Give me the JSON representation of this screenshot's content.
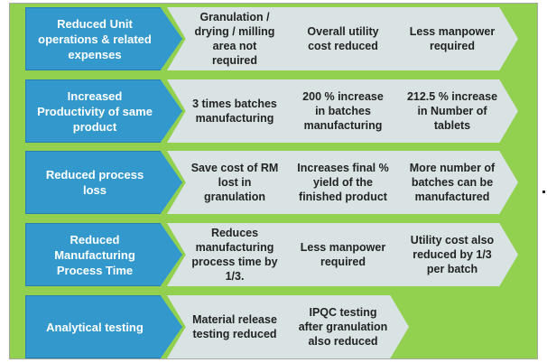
{
  "colors": {
    "panel_green": "#92d050",
    "header_blue": "#3399cc",
    "step_gray": "#d9e3e3"
  },
  "rows": [
    {
      "header": "Reduced Unit operations & related expenses",
      "steps": [
        "Granulation / drying / milling area not required",
        "Overall utility cost reduced",
        "Less manpower required"
      ]
    },
    {
      "header": "Increased Productivity of same product",
      "steps": [
        "3 times batches manufacturing",
        "200 % increase in batches manufacturing",
        "212.5 % increase in Number of tablets"
      ]
    },
    {
      "header": "Reduced process loss",
      "steps": [
        "Save cost of RM lost in granulation",
        "Increases final % yield of the finished product",
        "More number of batches can be manufactured"
      ]
    },
    {
      "header": "Reduced Manufacturing Process Time",
      "steps": [
        "Reduces manufacturing process time by 1/3.",
        "Less manpower required",
        "Utility cost also reduced by 1/3 per batch"
      ]
    },
    {
      "header": "Analytical testing",
      "steps": [
        "Material release testing reduced",
        "IPQC testing after granulation also reduced"
      ]
    }
  ]
}
